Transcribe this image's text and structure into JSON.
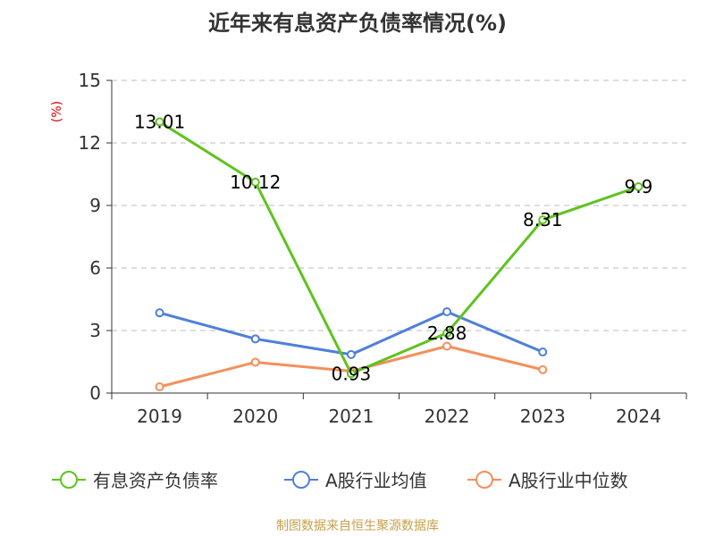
{
  "title": "近年来有息资产负债率情况(%)",
  "source": "制图数据来自恒生聚源数据库",
  "chart_data": {
    "type": "line",
    "title": "近年来有息资产负债率情况(%)",
    "ylabel": "(%)",
    "xlabel": "",
    "categories": [
      "2019",
      "2020",
      "2021",
      "2022",
      "2023",
      "2024"
    ],
    "ylim": [
      0,
      15
    ],
    "yticks": [
      0,
      3,
      6,
      9,
      12,
      15
    ],
    "grid": true,
    "legend_position": "bottom",
    "series": [
      {
        "name": "有息资产负债率",
        "color": "#5ec31f",
        "labels": true,
        "values": [
          13.01,
          10.12,
          0.93,
          2.88,
          8.31,
          9.9
        ],
        "label_text": [
          "13.01",
          "10.12",
          "0.93",
          "2.88",
          "8.31",
          "9.9"
        ]
      },
      {
        "name": "A股行业均值",
        "color": "#4f7fdb",
        "labels": false,
        "values": [
          3.85,
          2.6,
          1.85,
          3.9,
          1.97,
          null
        ]
      },
      {
        "name": "A股行业中位数",
        "color": "#f58f5a",
        "labels": false,
        "values": [
          0.3,
          1.48,
          1.05,
          2.25,
          1.12,
          null
        ]
      }
    ]
  }
}
